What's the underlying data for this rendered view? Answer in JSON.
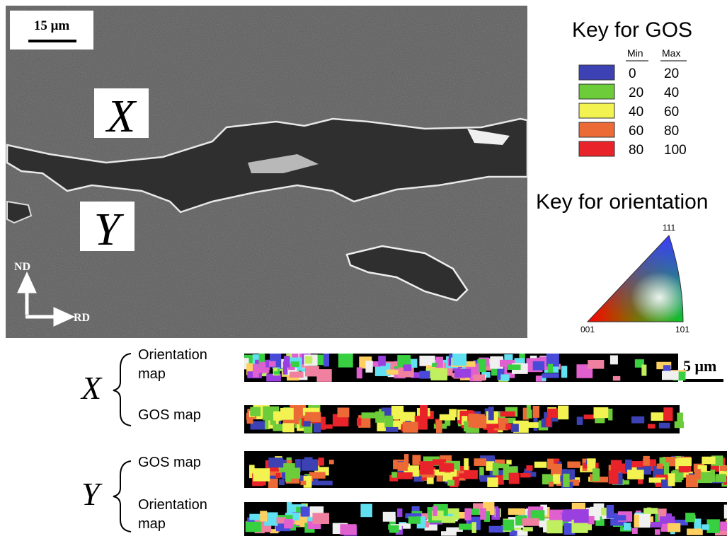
{
  "sem_image": {
    "scale_bar": "15 μm",
    "labels": [
      "X",
      "Y"
    ],
    "axes": {
      "vertical": "ND",
      "horizontal": "RD"
    }
  },
  "gos_key": {
    "title": "Key for GOS",
    "headers": [
      "Min",
      "Max"
    ],
    "rows": [
      {
        "min": 0,
        "max": 20,
        "color": "#3c41b4"
      },
      {
        "min": 20,
        "max": 40,
        "color": "#6ccc3a"
      },
      {
        "min": 40,
        "max": 60,
        "color": "#f2f250"
      },
      {
        "min": 60,
        "max": 80,
        "color": "#ec6a36"
      },
      {
        "min": 80,
        "max": 100,
        "color": "#e8232a"
      }
    ]
  },
  "orientation_key": {
    "title": "Key for orientation",
    "corners": {
      "top": "111",
      "left": "001",
      "right": "101"
    }
  },
  "maps": {
    "scale_bar": "5 μm",
    "groups": [
      {
        "label": "X",
        "panels": [
          {
            "lines": [
              "Orientation",
              "map"
            ]
          },
          {
            "lines": [
              "GOS map"
            ]
          }
        ]
      },
      {
        "label": "Y",
        "panels": [
          {
            "lines": [
              "GOS map"
            ]
          },
          {
            "lines": [
              "Orientation",
              "map"
            ]
          }
        ]
      }
    ]
  }
}
